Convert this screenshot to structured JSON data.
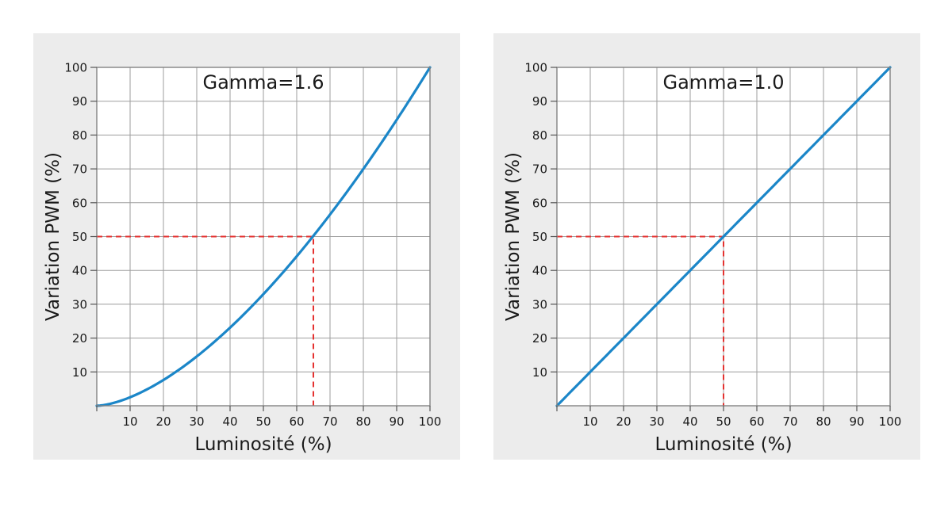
{
  "figure": {
    "background": "#ffffff",
    "panel_background": "#ececec",
    "plot_background": "#ffffff",
    "grid_color": "#9e9e9e",
    "border_color": "#828282",
    "text_color": "#1a1a1a"
  },
  "chart_data": [
    {
      "type": "line",
      "title": "Gamma=1.6",
      "xlabel": "Luminosité (%)",
      "ylabel": "Variation PWM (%)",
      "xlim": [
        0,
        100
      ],
      "ylim": [
        0,
        100
      ],
      "xticks": [
        10,
        20,
        30,
        40,
        50,
        60,
        70,
        80,
        90,
        100
      ],
      "yticks": [
        10,
        20,
        30,
        40,
        50,
        60,
        70,
        80,
        90,
        100
      ],
      "grid": true,
      "legend_position": "none",
      "gamma": 1.6,
      "line_color": "#1b86c8",
      "series": [
        {
          "color": "#1b86c8",
          "x": [
            0,
            5,
            10,
            15,
            20,
            25,
            30,
            35,
            40,
            45,
            50,
            55,
            60,
            65,
            70,
            75,
            80,
            85,
            90,
            95,
            100
          ],
          "y": [
            0,
            0.8,
            2.5,
            4.8,
            7.6,
            10.9,
            14.6,
            18.6,
            23.1,
            27.9,
            33.0,
            38.4,
            44.2,
            50.2,
            56.5,
            63.1,
            70.0,
            77.1,
            84.5,
            92.1,
            100
          ]
        }
      ],
      "reference": {
        "y": 50,
        "x": 65,
        "color": "#e53230",
        "style": "dashed"
      }
    },
    {
      "type": "line",
      "title": "Gamma=1.0",
      "xlabel": "Luminosité (%)",
      "ylabel": "Variation PWM (%)",
      "xlim": [
        0,
        100
      ],
      "ylim": [
        0,
        100
      ],
      "xticks": [
        10,
        20,
        30,
        40,
        50,
        60,
        70,
        80,
        90,
        100
      ],
      "yticks": [
        10,
        20,
        30,
        40,
        50,
        60,
        70,
        80,
        90,
        100
      ],
      "grid": true,
      "legend_position": "none",
      "gamma": 1.0,
      "line_color": "#1b86c8",
      "series": [
        {
          "color": "#1b86c8",
          "x": [
            0,
            10,
            20,
            30,
            40,
            50,
            60,
            70,
            80,
            90,
            100
          ],
          "y": [
            0,
            10,
            20,
            30,
            40,
            50,
            60,
            70,
            80,
            90,
            100
          ]
        }
      ],
      "reference": {
        "y": 50,
        "x": 50,
        "color": "#e53230",
        "style": "dashed"
      }
    }
  ]
}
